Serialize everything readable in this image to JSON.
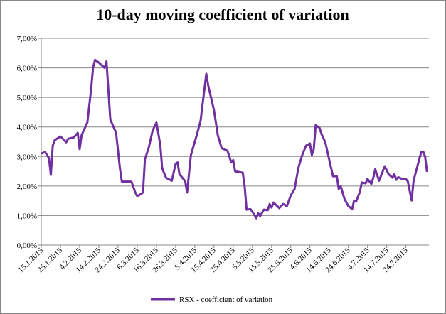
{
  "chart_data": {
    "type": "line",
    "title": "10-day moving coefficient of variation",
    "x": [
      15,
      17,
      19,
      20,
      21,
      22,
      25,
      28,
      29,
      32,
      34,
      35,
      36,
      39,
      41,
      42,
      43,
      45,
      48,
      49,
      51,
      54,
      56,
      57,
      61,
      62,
      64,
      65,
      67,
      68,
      69,
      71,
      73,
      75,
      77,
      78,
      80,
      83,
      85,
      86,
      87,
      90,
      91,
      93,
      96,
      98,
      101,
      102,
      105,
      107,
      109,
      112,
      114,
      115,
      116,
      120,
      121,
      122,
      124,
      126,
      127,
      128,
      129,
      131,
      133,
      134,
      135,
      136,
      138,
      139,
      141,
      143,
      145,
      147,
      149,
      151,
      153,
      155,
      156,
      157,
      158,
      160,
      161,
      163,
      166,
      167,
      169,
      170,
      171,
      173,
      175,
      177,
      178,
      179,
      181,
      182,
      184,
      185,
      187,
      188,
      189,
      191,
      194,
      196,
      198,
      199,
      200,
      201,
      203,
      205,
      206,
      208,
      209,
      211,
      213,
      214,
      215,
      216
    ],
    "series": [
      {
        "name": "RSX - coefficient of variation",
        "color": "#7030a0",
        "values": [
          3.1,
          3.15,
          2.95,
          2.38,
          3.37,
          3.55,
          3.68,
          3.48,
          3.6,
          3.65,
          3.8,
          3.25,
          3.72,
          4.15,
          5.28,
          6.0,
          6.27,
          6.18,
          6.0,
          6.22,
          4.25,
          3.8,
          2.6,
          2.15,
          2.15,
          2.15,
          1.78,
          1.66,
          1.73,
          1.78,
          2.9,
          3.3,
          3.87,
          4.15,
          3.4,
          2.6,
          2.28,
          2.18,
          2.75,
          2.8,
          2.4,
          2.16,
          1.78,
          3.05,
          3.72,
          4.2,
          5.8,
          5.4,
          4.57,
          3.72,
          3.28,
          3.2,
          2.8,
          2.88,
          2.5,
          2.45,
          1.97,
          1.2,
          1.22,
          1.03,
          0.91,
          1.08,
          0.98,
          1.2,
          1.18,
          1.39,
          1.27,
          1.44,
          1.32,
          1.25,
          1.39,
          1.32,
          1.68,
          1.9,
          2.62,
          3.05,
          3.37,
          3.44,
          3.05,
          3.25,
          4.06,
          3.97,
          3.77,
          3.48,
          2.62,
          2.33,
          2.33,
          1.9,
          2.0,
          1.56,
          1.32,
          1.22,
          1.51,
          1.47,
          1.8,
          2.12,
          2.09,
          2.24,
          2.07,
          2.28,
          2.57,
          2.18,
          2.67,
          2.4,
          2.28,
          2.4,
          2.21,
          2.3,
          2.24,
          2.24,
          2.16,
          1.51,
          2.18,
          2.67,
          3.15,
          3.17,
          3.0,
          2.48
        ]
      }
    ],
    "xlim": [
      15,
      217
    ],
    "xticks": [
      {
        "value": 15,
        "label": "15.1.2015"
      },
      {
        "value": 25,
        "label": "25.1.2015"
      },
      {
        "value": 35,
        "label": "4.2.2015"
      },
      {
        "value": 45,
        "label": "14.2.2015"
      },
      {
        "value": 55,
        "label": "24.2.2015"
      },
      {
        "value": 65,
        "label": "6.3.2015"
      },
      {
        "value": 75,
        "label": "16.3.2015"
      },
      {
        "value": 85,
        "label": "26.3.2015"
      },
      {
        "value": 95,
        "label": "5.4.2015"
      },
      {
        "value": 105,
        "label": "15.4.2015"
      },
      {
        "value": 115,
        "label": "25.4.2015"
      },
      {
        "value": 125,
        "label": "5.5.2015"
      },
      {
        "value": 135,
        "label": "15.5.2015"
      },
      {
        "value": 145,
        "label": "25.5.2015"
      },
      {
        "value": 155,
        "label": "4.6.2015"
      },
      {
        "value": 165,
        "label": "14.6.2015"
      },
      {
        "value": 175,
        "label": "24.6.2015"
      },
      {
        "value": 185,
        "label": "4.7.2015"
      },
      {
        "value": 195,
        "label": "14.7.2015"
      },
      {
        "value": 205,
        "label": "24.7.2015"
      }
    ],
    "ylim": [
      0,
      7
    ],
    "yticks": [
      {
        "value": 0,
        "label": "0,00%"
      },
      {
        "value": 1,
        "label": "1,00%"
      },
      {
        "value": 2,
        "label": "2,00%"
      },
      {
        "value": 3,
        "label": "3,00%"
      },
      {
        "value": 4,
        "label": "4,00%"
      },
      {
        "value": 5,
        "label": "5,00%"
      },
      {
        "value": 6,
        "label": "6,00%"
      },
      {
        "value": 7,
        "label": "7,00%"
      }
    ],
    "grid": true,
    "legend": "bottom"
  }
}
